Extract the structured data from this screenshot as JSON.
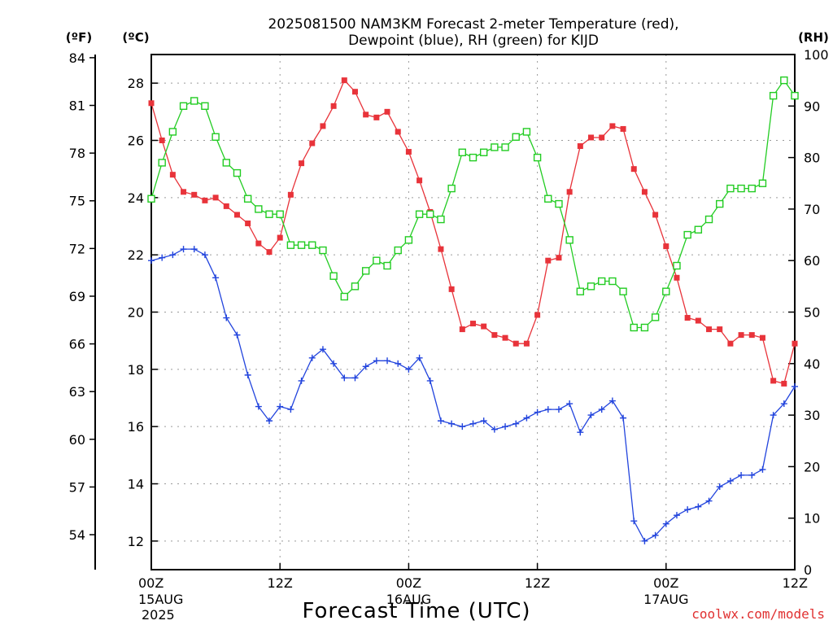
{
  "chart_data": {
    "type": "line",
    "title_line1": "2025081500 NAM3KM Forecast 2-meter Temperature (red),",
    "title_line2": "Dewpoint (blue), RH (green) for KIJD",
    "xlabel": "Forecast Time (UTC)",
    "credit": "coolwx.com/models",
    "unit_left_f": "(ºF)",
    "unit_left_c": "(ºC)",
    "unit_right": "(RH)",
    "x_unit": "forecast hour",
    "xlim": [
      0,
      60
    ],
    "ylim_c": [
      11,
      29
    ],
    "ylim_rh": [
      0,
      100
    ],
    "x_ticks": [
      {
        "x": 0,
        "label": "00Z",
        "sub1": "15AUG",
        "sub2": "2025"
      },
      {
        "x": 12,
        "label": "12Z",
        "sub1": "",
        "sub2": ""
      },
      {
        "x": 24,
        "label": "00Z",
        "sub1": "16AUG",
        "sub2": ""
      },
      {
        "x": 36,
        "label": "12Z",
        "sub1": "",
        "sub2": ""
      },
      {
        "x": 48,
        "label": "00Z",
        "sub1": "17AUG",
        "sub2": ""
      },
      {
        "x": 60,
        "label": "12Z",
        "sub1": "",
        "sub2": ""
      }
    ],
    "c_ticks": [
      12,
      14,
      16,
      18,
      20,
      22,
      24,
      26,
      28
    ],
    "f_ticks": [
      54,
      57,
      60,
      63,
      66,
      69,
      72,
      75,
      78,
      81,
      84
    ],
    "rh_ticks": [
      0,
      10,
      20,
      30,
      40,
      50,
      60,
      70,
      80,
      90,
      100
    ],
    "series": [
      {
        "name": "Temperature",
        "color": "#e8333a",
        "marker": "filled-square",
        "axis": "c",
        "values": [
          27.3,
          26.0,
          24.8,
          24.2,
          24.1,
          23.9,
          24.0,
          23.7,
          23.4,
          23.1,
          22.4,
          22.1,
          22.6,
          24.1,
          25.2,
          25.9,
          26.5,
          27.2,
          28.1,
          27.7,
          26.9,
          26.8,
          27.0,
          26.3,
          25.6,
          24.6,
          23.5,
          22.2,
          20.8,
          19.4,
          19.6,
          19.5,
          19.2,
          19.1,
          18.9,
          18.9,
          19.9,
          21.8,
          21.9,
          24.2,
          25.8,
          26.1,
          26.1,
          26.5,
          26.4,
          25.0,
          24.2,
          23.4,
          22.3,
          21.2,
          19.8,
          19.7,
          19.4,
          19.4,
          18.9,
          19.2,
          19.2,
          19.1,
          17.6,
          17.5,
          18.9
        ]
      },
      {
        "name": "Dewpoint",
        "color": "#2244dd",
        "marker": "plus",
        "axis": "c",
        "values": [
          21.8,
          21.9,
          22.0,
          22.2,
          22.2,
          22.0,
          21.2,
          19.8,
          19.2,
          17.8,
          16.7,
          16.2,
          16.7,
          16.6,
          17.6,
          18.4,
          18.7,
          18.2,
          17.7,
          17.7,
          18.1,
          18.3,
          18.3,
          18.2,
          18.0,
          18.4,
          17.6,
          16.2,
          16.1,
          16.0,
          16.1,
          16.2,
          15.9,
          16.0,
          16.1,
          16.3,
          16.5,
          16.6,
          16.6,
          16.8,
          15.8,
          16.4,
          16.6,
          16.9,
          16.3,
          12.7,
          12.0,
          12.2,
          12.6,
          12.9,
          13.1,
          13.2,
          13.4,
          13.9,
          14.1,
          14.3,
          14.3,
          14.5,
          16.4,
          16.8,
          17.4
        ]
      },
      {
        "name": "RH",
        "color": "#22cc22",
        "marker": "open-square",
        "axis": "rh",
        "values": [
          72,
          79,
          85,
          90,
          91,
          90,
          84,
          79,
          77,
          72,
          70,
          69,
          69,
          63,
          63,
          63,
          62,
          57,
          53,
          55,
          58,
          60,
          59,
          62,
          64,
          69,
          69,
          68,
          74,
          81,
          80,
          81,
          82,
          82,
          84,
          85,
          80,
          72,
          71,
          64,
          54,
          55,
          56,
          56,
          54,
          47,
          47,
          49,
          54,
          59,
          65,
          66,
          68,
          71,
          74,
          74,
          74,
          75,
          92,
          95,
          92
        ]
      }
    ]
  }
}
